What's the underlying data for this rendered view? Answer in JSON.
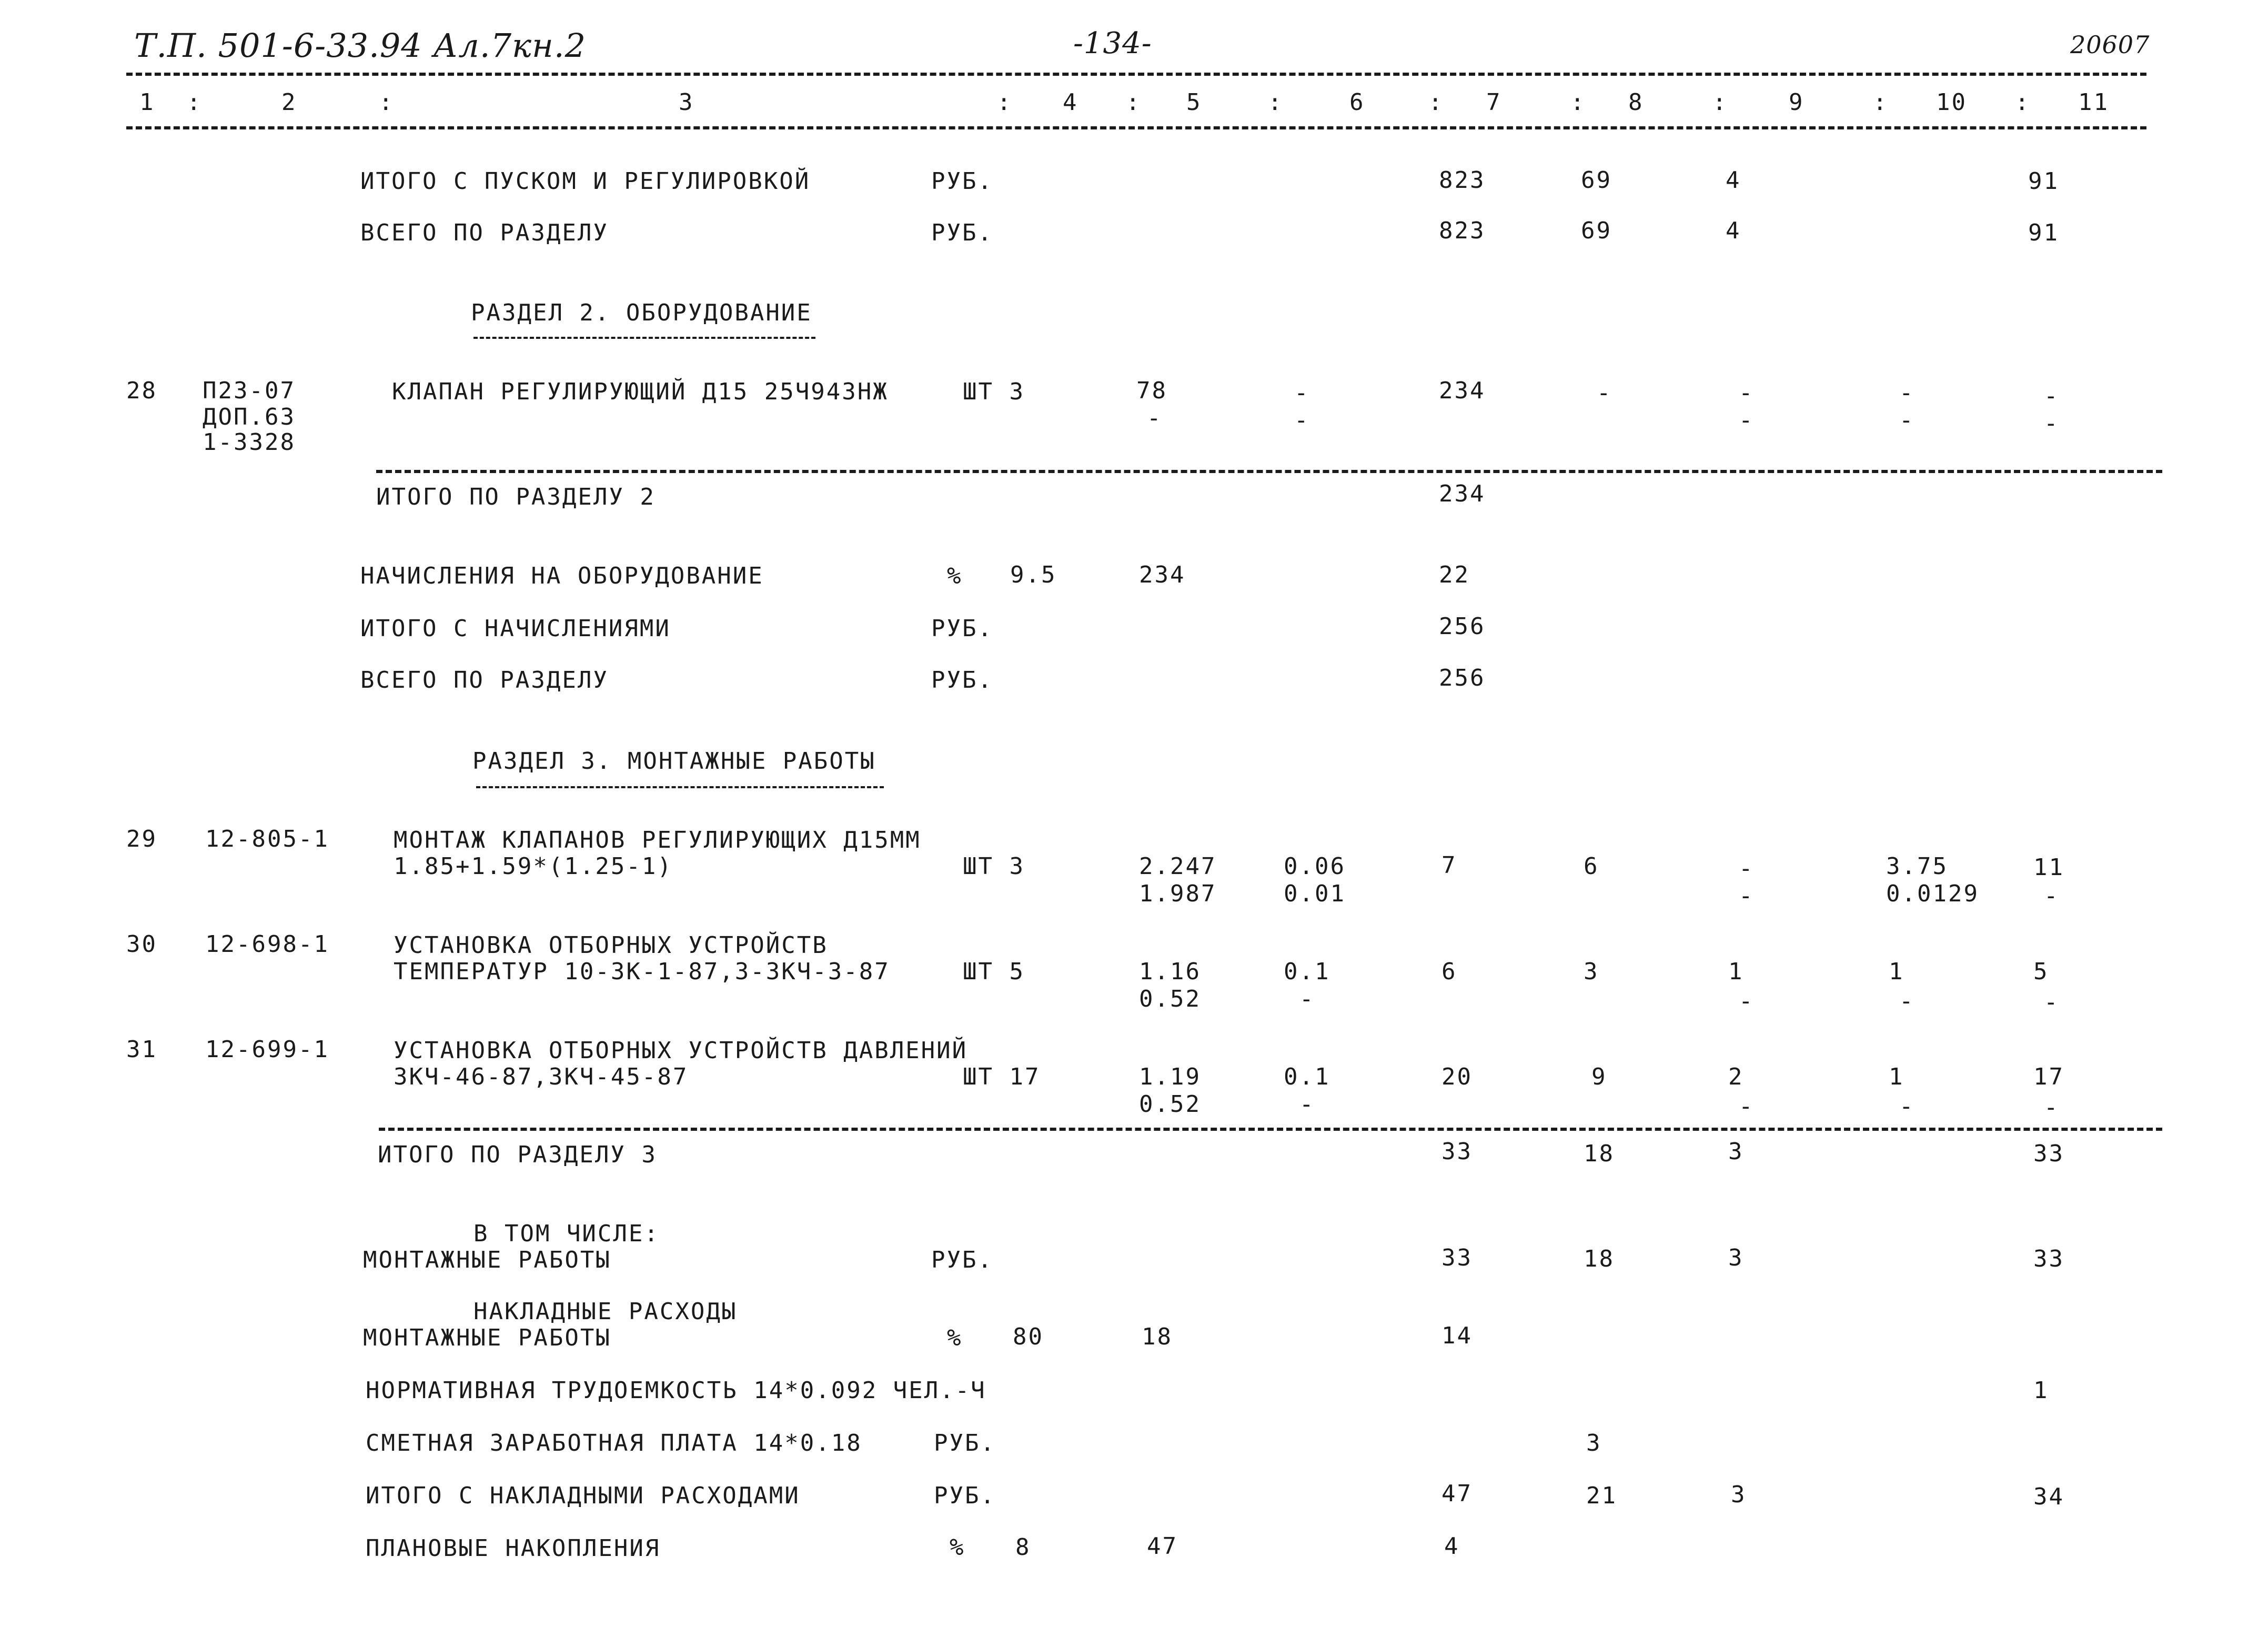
{
  "header": {
    "doc_code": "Т.П. 501-6-33.94 Ал.7кн.2",
    "page_number": "-134-",
    "sheet_code": "20607"
  },
  "columns": {
    "c1": "1",
    "c2": "2",
    "c3": "3",
    "c4": "4",
    "c5": "5",
    "c6": "6",
    "c7": "7",
    "c8": "8",
    "c9": "9",
    "c10": "10",
    "c11": "11",
    "sep": ":"
  },
  "section1_totals": {
    "with_startup": {
      "label": "ИТОГО С ПУСКОМ И РЕГУЛИРОВКОЙ",
      "unit": "РУБ.",
      "c7": "823",
      "c8": "69",
      "c9": "4",
      "c11": "91"
    },
    "total": {
      "label": "ВСЕГО ПО РАЗДЕЛУ",
      "unit": "РУБ.",
      "c7": "823",
      "c8": "69",
      "c9": "4",
      "c11": "91"
    }
  },
  "section2": {
    "title": "РАЗДЕЛ 2. ОБОРУДОВАНИЕ",
    "row28": {
      "num": "28",
      "code1": "П23-07",
      "code2": "ДОП.63",
      "code3": "1-3328",
      "name": "КЛАПАН РЕГУЛИРУЮЩИЙ Д15 25Ч943НЖ",
      "unit_qty": "ШТ 3",
      "c5": "78",
      "c7": "234",
      "dash": "-"
    },
    "subtotal": {
      "label": "ИТОГО ПО РАЗДЕЛУ 2",
      "c7": "234"
    },
    "charges": {
      "label": "НАЧИСЛЕНИЯ НА ОБОРУДОВАНИЕ",
      "unit": "%",
      "c4": "9.5",
      "c5": "234",
      "c7": "22"
    },
    "with_charges": {
      "label": "ИТОГО С НАЧИСЛЕНИЯМИ",
      "unit": "РУБ.",
      "c7": "256"
    },
    "total": {
      "label": "ВСЕГО ПО РАЗДЕЛУ",
      "unit": "РУБ.",
      "c7": "256"
    }
  },
  "section3": {
    "title": "РАЗДЕЛ 3. МОНТАЖНЫЕ РАБОТЫ",
    "row29": {
      "num": "29",
      "code": "12-805-1",
      "name1": "МОНТАЖ КЛАПАНОВ РЕГУЛИРУЮЩИХ Д15ММ",
      "name2": "1.85+1.59*(1.25-1)",
      "unit_qty": "ШТ 3",
      "c5a": "2.247",
      "c5b": "1.987",
      "c6a": "0.06",
      "c6b": "0.01",
      "c7": "7",
      "c8": "6",
      "c10a": "3.75",
      "c10b": "0.0129",
      "c11": "11"
    },
    "row30": {
      "num": "30",
      "code": "12-698-1",
      "name1": "УСТАНОВКА ОТБОРНЫХ УСТРОЙСТВ",
      "name2": "ТЕМПЕРАТУР 10-3К-1-87,3-3КЧ-3-87",
      "unit_qty": "ШТ 5",
      "c5a": "1.16",
      "c5b": "0.52",
      "c6a": "0.1",
      "c7": "6",
      "c8": "3",
      "c9": "1",
      "c10": "1",
      "c11": "5"
    },
    "row31": {
      "num": "31",
      "code": "12-699-1",
      "name1": "УСТАНОВКА ОТБОРНЫХ УСТРОЙСТВ ДАВЛЕНИЙ",
      "name2": "3КЧ-46-87,3КЧ-45-87",
      "unit_qty": "ШТ 17",
      "c5a": "1.19",
      "c5b": "0.52",
      "c6a": "0.1",
      "c7": "20",
      "c8": "9",
      "c9": "2",
      "c10": "1",
      "c11": "17"
    },
    "subtotal": {
      "label": "ИТОГО ПО РАЗДЕЛУ 3",
      "c7": "33",
      "c8": "18",
      "c9": "3",
      "c11": "33"
    },
    "including_label": "В ТОМ ЧИСЛЕ:",
    "mounting": {
      "label": "МОНТАЖНЫЕ РАБОТЫ",
      "unit": "РУБ.",
      "c7": "33",
      "c8": "18",
      "c9": "3",
      "c11": "33"
    },
    "overhead_label": "НАКЛАДНЫЕ РАСХОДЫ",
    "overhead_mounting": {
      "label": "МОНТАЖНЫЕ РАБОТЫ",
      "unit": "%",
      "c4": "80",
      "c5": "18",
      "c7": "14"
    },
    "labor": {
      "label": "НОРМАТИВНАЯ ТРУДОЕМКОСТЬ 14*0.092 ЧЕЛ.-Ч",
      "c11": "1"
    },
    "wages": {
      "label": "СМЕТНАЯ ЗАРАБОТНАЯ ПЛАТА 14*0.18",
      "unit": "РУБ.",
      "c8": "3"
    },
    "with_overhead": {
      "label": "ИТОГО С НАКЛАДНЫМИ РАСХОДАМИ",
      "unit": "РУБ.",
      "c7": "47",
      "c8": "21",
      "c9": "3",
      "c11": "34"
    },
    "planned": {
      "label": "ПЛАНОВЫЕ НАКОПЛЕНИЯ",
      "unit": "%",
      "c4": "8",
      "c5": "47",
      "c7": "4"
    }
  }
}
